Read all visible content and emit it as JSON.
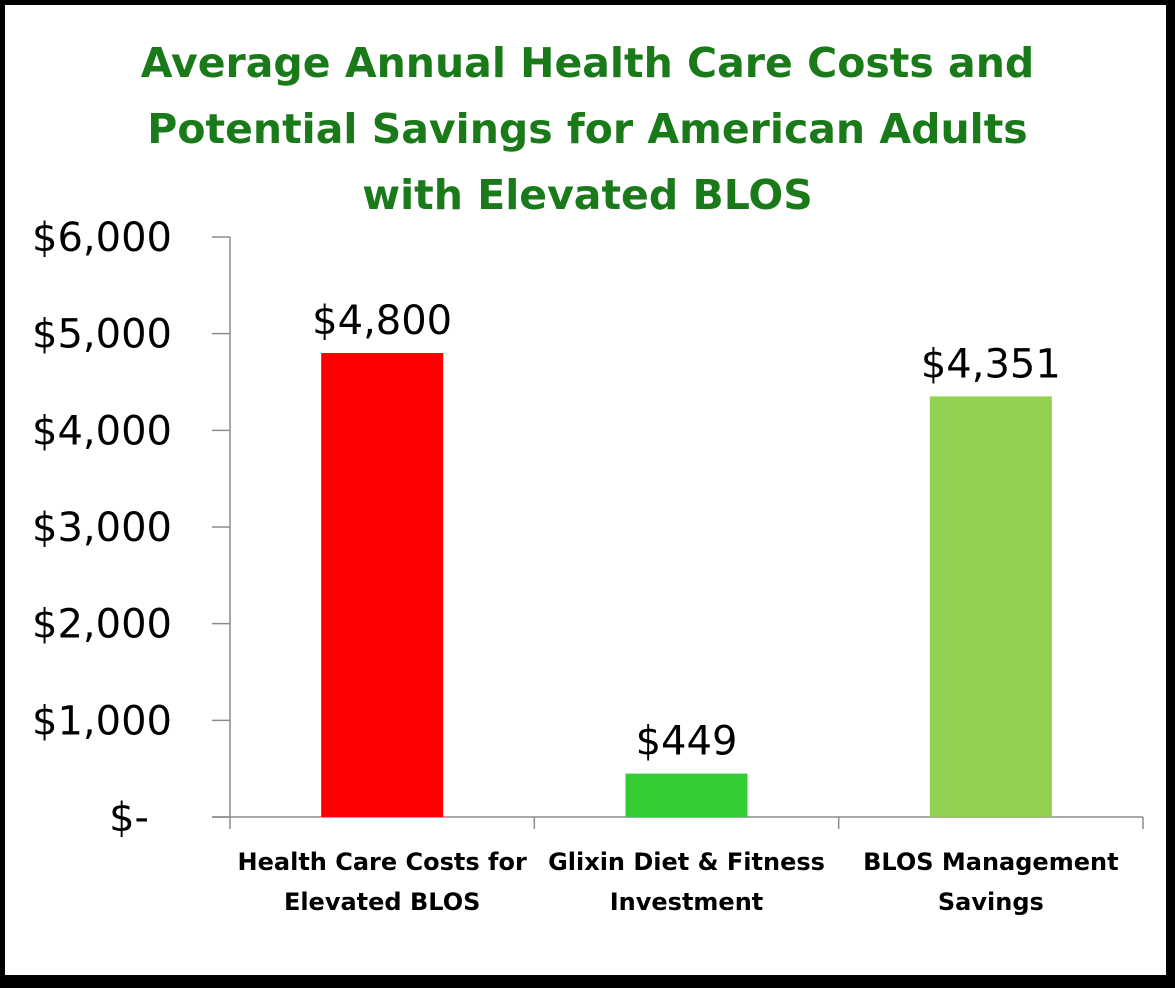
{
  "chart_data": {
    "type": "bar",
    "title_lines": [
      "Average Annual Health Care Costs and",
      "Potential Savings for American Adults",
      "with Elevated BLOS"
    ],
    "categories": [
      [
        "Health Care Costs for",
        "Elevated BLOS"
      ],
      [
        "Glixin Diet & Fitness",
        "Investment"
      ],
      [
        "BLOS Management",
        "Savings"
      ]
    ],
    "values": [
      4800,
      449,
      4351
    ],
    "data_labels": [
      "$4,800",
      "$449",
      "$4,351"
    ],
    "bar_colors": [
      "#ff0000",
      "#33cc33",
      "#92d050"
    ],
    "ylim": [
      0,
      6000
    ],
    "yticks": [
      0,
      1000,
      2000,
      3000,
      4000,
      5000,
      6000
    ],
    "ytick_labels": [
      "$-",
      "$1,000",
      "$2,000",
      "$3,000",
      "$4,000",
      "$5,000",
      "$6,000"
    ],
    "xlabel": "",
    "ylabel": "",
    "grid": false,
    "legend": "none"
  },
  "colors": {
    "title": "#1a7a1a",
    "axis": "#8c8c8c",
    "frame": "#000000"
  }
}
